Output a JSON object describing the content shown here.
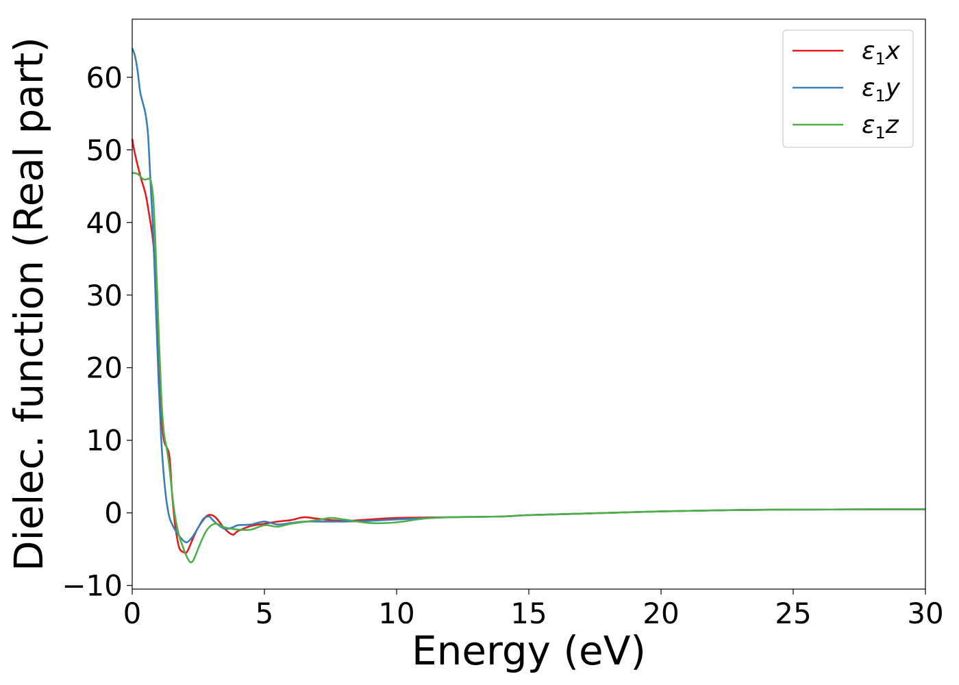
{
  "chart_data": {
    "type": "line",
    "xlabel": "Energy (eV)",
    "ylabel": "Dielec. function (Real part)",
    "xlim": [
      0,
      30
    ],
    "ylim": [
      -10.5,
      68
    ],
    "xticks": [
      0,
      5,
      10,
      15,
      20,
      25,
      30
    ],
    "xtick_labels": [
      "0",
      "5",
      "10",
      "15",
      "20",
      "25",
      "30"
    ],
    "yticks": [
      -10,
      0,
      10,
      20,
      30,
      40,
      50,
      60
    ],
    "ytick_labels": [
      "−10",
      "0",
      "10",
      "20",
      "30",
      "40",
      "50",
      "60"
    ],
    "grid": false,
    "legend_position": "top-right",
    "series": [
      {
        "name": "ε₁x",
        "legend_base": "ε",
        "legend_sub": "1",
        "legend_var": "x",
        "color": "#e41a1c",
        "x": [
          0,
          0.1,
          0.3,
          0.5,
          0.6,
          0.8,
          0.9,
          1.0,
          1.1,
          1.2,
          1.4,
          1.5,
          1.6,
          1.7,
          1.8,
          2.0,
          2.1,
          2.3,
          2.5,
          2.8,
          3.0,
          3.2,
          3.5,
          3.8,
          4.0,
          4.5,
          5.0,
          5.5,
          6.0,
          6.5,
          7.0,
          8.0,
          9.0,
          10.0,
          12.0,
          14.0,
          15.0,
          17.0,
          20.0,
          23.0,
          25.0,
          28.0,
          30.0
        ],
        "y": [
          51.5,
          49.5,
          46.5,
          44,
          42,
          37,
          30,
          22,
          14,
          10,
          8,
          3,
          -1,
          -3.5,
          -5,
          -5.5,
          -5.2,
          -3.5,
          -2,
          -0.5,
          -0.3,
          -0.8,
          -2.2,
          -3.0,
          -2.5,
          -1.8,
          -1.5,
          -1.2,
          -1.0,
          -0.6,
          -0.8,
          -1.1,
          -0.9,
          -0.7,
          -0.6,
          -0.5,
          -0.3,
          -0.1,
          0.2,
          0.4,
          0.45,
          0.48,
          0.5
        ]
      },
      {
        "name": "ε₁y",
        "legend_base": "ε",
        "legend_sub": "1",
        "legend_var": "y",
        "color": "#377eb8",
        "x": [
          0,
          0.1,
          0.2,
          0.3,
          0.4,
          0.5,
          0.6,
          0.7,
          0.8,
          0.9,
          1.0,
          1.1,
          1.2,
          1.3,
          1.4,
          1.5,
          1.7,
          1.9,
          2.0,
          2.1,
          2.3,
          2.5,
          2.7,
          2.9,
          3.0,
          3.2,
          3.5,
          3.8,
          4.0,
          4.5,
          5.0,
          5.5,
          6.0,
          6.5,
          7.0,
          8.0,
          9.0,
          10.0,
          12.0,
          14.0,
          15.0,
          17.0,
          20.0,
          23.0,
          25.0,
          28.0,
          30.0
        ],
        "y": [
          64,
          63,
          61,
          58,
          56.5,
          55,
          52,
          45,
          38,
          28,
          18,
          10,
          5,
          1.5,
          -0.5,
          -1.5,
          -2.8,
          -3.7,
          -4.0,
          -4.0,
          -3.2,
          -2.0,
          -0.8,
          -0.5,
          -0.8,
          -1.5,
          -2.2,
          -2.0,
          -1.7,
          -1.6,
          -1.2,
          -1.6,
          -1.4,
          -1.2,
          -1.2,
          -1.2,
          -1.1,
          -0.9,
          -0.6,
          -0.5,
          -0.3,
          -0.1,
          0.2,
          0.4,
          0.45,
          0.48,
          0.5
        ]
      },
      {
        "name": "ε₁z",
        "legend_base": "ε",
        "legend_sub": "1",
        "legend_var": "z",
        "color": "#4daf4a",
        "x": [
          0,
          0.1,
          0.2,
          0.3,
          0.4,
          0.5,
          0.6,
          0.7,
          0.8,
          0.9,
          1.0,
          1.1,
          1.2,
          1.3,
          1.4,
          1.5,
          1.6,
          1.7,
          1.8,
          1.9,
          2.0,
          2.1,
          2.2,
          2.3,
          2.4,
          2.6,
          2.8,
          3.0,
          3.2,
          3.5,
          4.0,
          4.5,
          5.0,
          5.5,
          6.0,
          7.0,
          7.5,
          8.0,
          9.0,
          10.0,
          11.0,
          12.0,
          14.0,
          15.0,
          17.0,
          20.0,
          23.0,
          25.0,
          28.0,
          30.0
        ],
        "y": [
          46.8,
          46.8,
          46.7,
          46.4,
          46.0,
          45.9,
          46.0,
          45.8,
          43,
          35,
          25,
          16,
          11,
          9,
          6.5,
          3,
          0,
          -2,
          -3.5,
          -4.5,
          -5.5,
          -6.3,
          -6.8,
          -6.6,
          -5.8,
          -4.0,
          -2.5,
          -1.7,
          -1.5,
          -2.0,
          -2.3,
          -2.3,
          -1.7,
          -1.9,
          -1.5,
          -1.0,
          -0.7,
          -0.9,
          -1.4,
          -1.3,
          -0.8,
          -0.6,
          -0.5,
          -0.3,
          -0.1,
          0.2,
          0.4,
          0.45,
          0.48,
          0.5
        ]
      }
    ]
  }
}
